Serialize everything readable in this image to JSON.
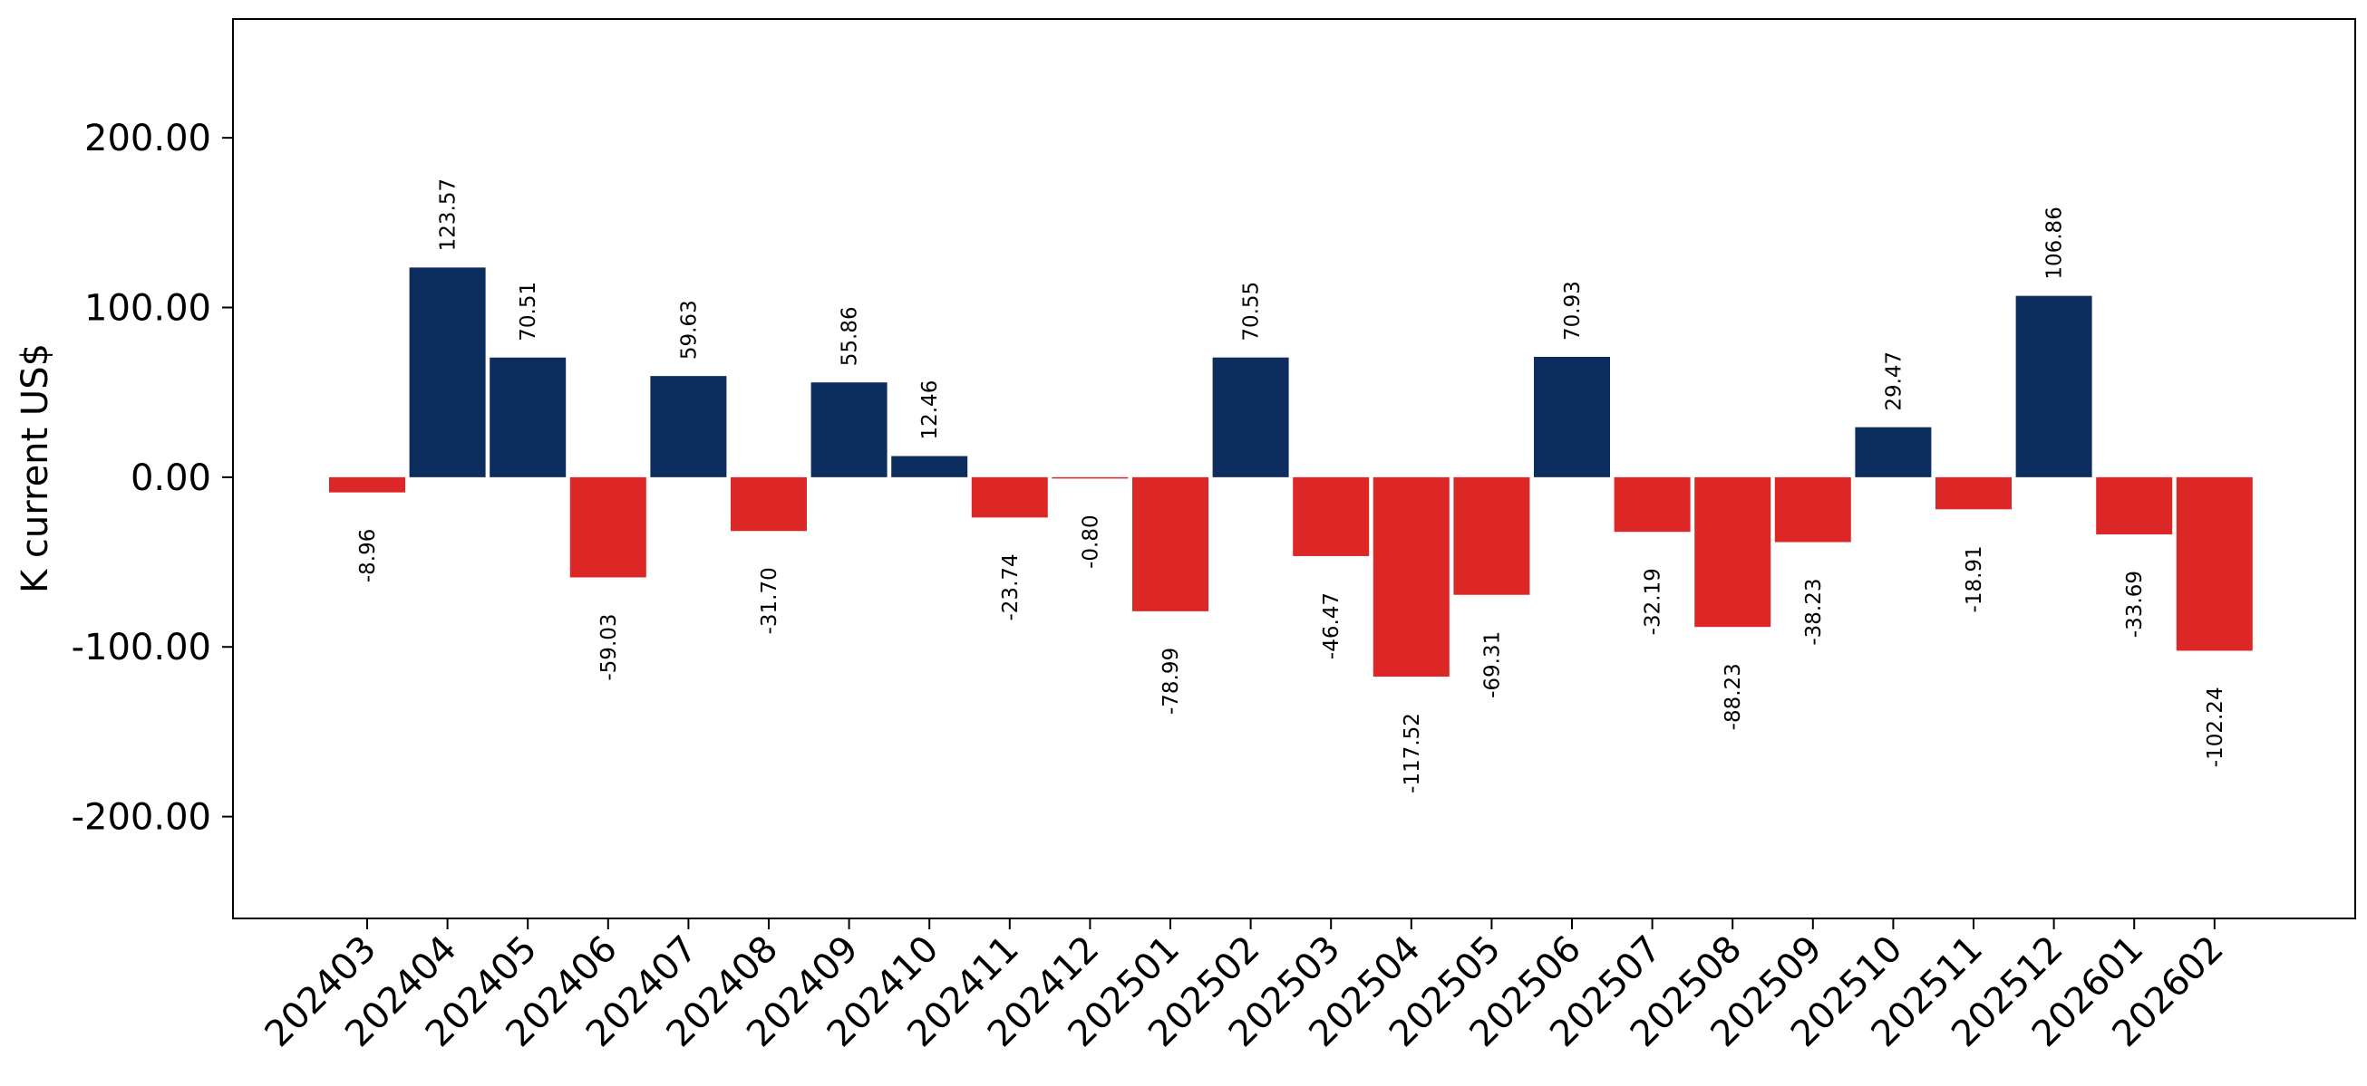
{
  "chart_data": {
    "type": "bar",
    "ylabel": "K current US$",
    "ylim": [
      -260,
      270
    ],
    "yticks": [
      -200,
      -100,
      0,
      100,
      200
    ],
    "ytick_labels": [
      "-200.00",
      "-100.00",
      "0.00",
      "100.00",
      "200.00"
    ],
    "grid": false,
    "colors": {
      "positive": "#0d2d5e",
      "negative": "#dd2727"
    },
    "categories": [
      "202403",
      "202404",
      "202405",
      "202406",
      "202407",
      "202408",
      "202409",
      "202410",
      "202411",
      "202412",
      "202501",
      "202502",
      "202503",
      "202504",
      "202505",
      "202506",
      "202507",
      "202508",
      "202509",
      "202510",
      "202511",
      "202512",
      "202601",
      "202602"
    ],
    "values": [
      -8.96,
      123.57,
      70.51,
      -59.03,
      59.63,
      -31.7,
      55.86,
      12.46,
      -23.74,
      -0.8,
      -78.99,
      70.55,
      -46.47,
      -117.52,
      -69.31,
      70.93,
      -32.19,
      -88.23,
      -38.23,
      29.47,
      -18.91,
      106.86,
      -33.69,
      -102.24
    ],
    "value_labels": [
      "-8.96",
      "123.57",
      "70.51",
      "-59.03",
      "59.63",
      "-31.70",
      "55.86",
      "12.46",
      "-23.74",
      "-0.80",
      "-78.99",
      "70.55",
      "-46.47",
      "-117.52",
      "-69.31",
      "70.93",
      "-32.19",
      "-88.23",
      "-38.23",
      "29.47",
      "-18.91",
      "106.86",
      "-33.69",
      "-102.24"
    ]
  }
}
